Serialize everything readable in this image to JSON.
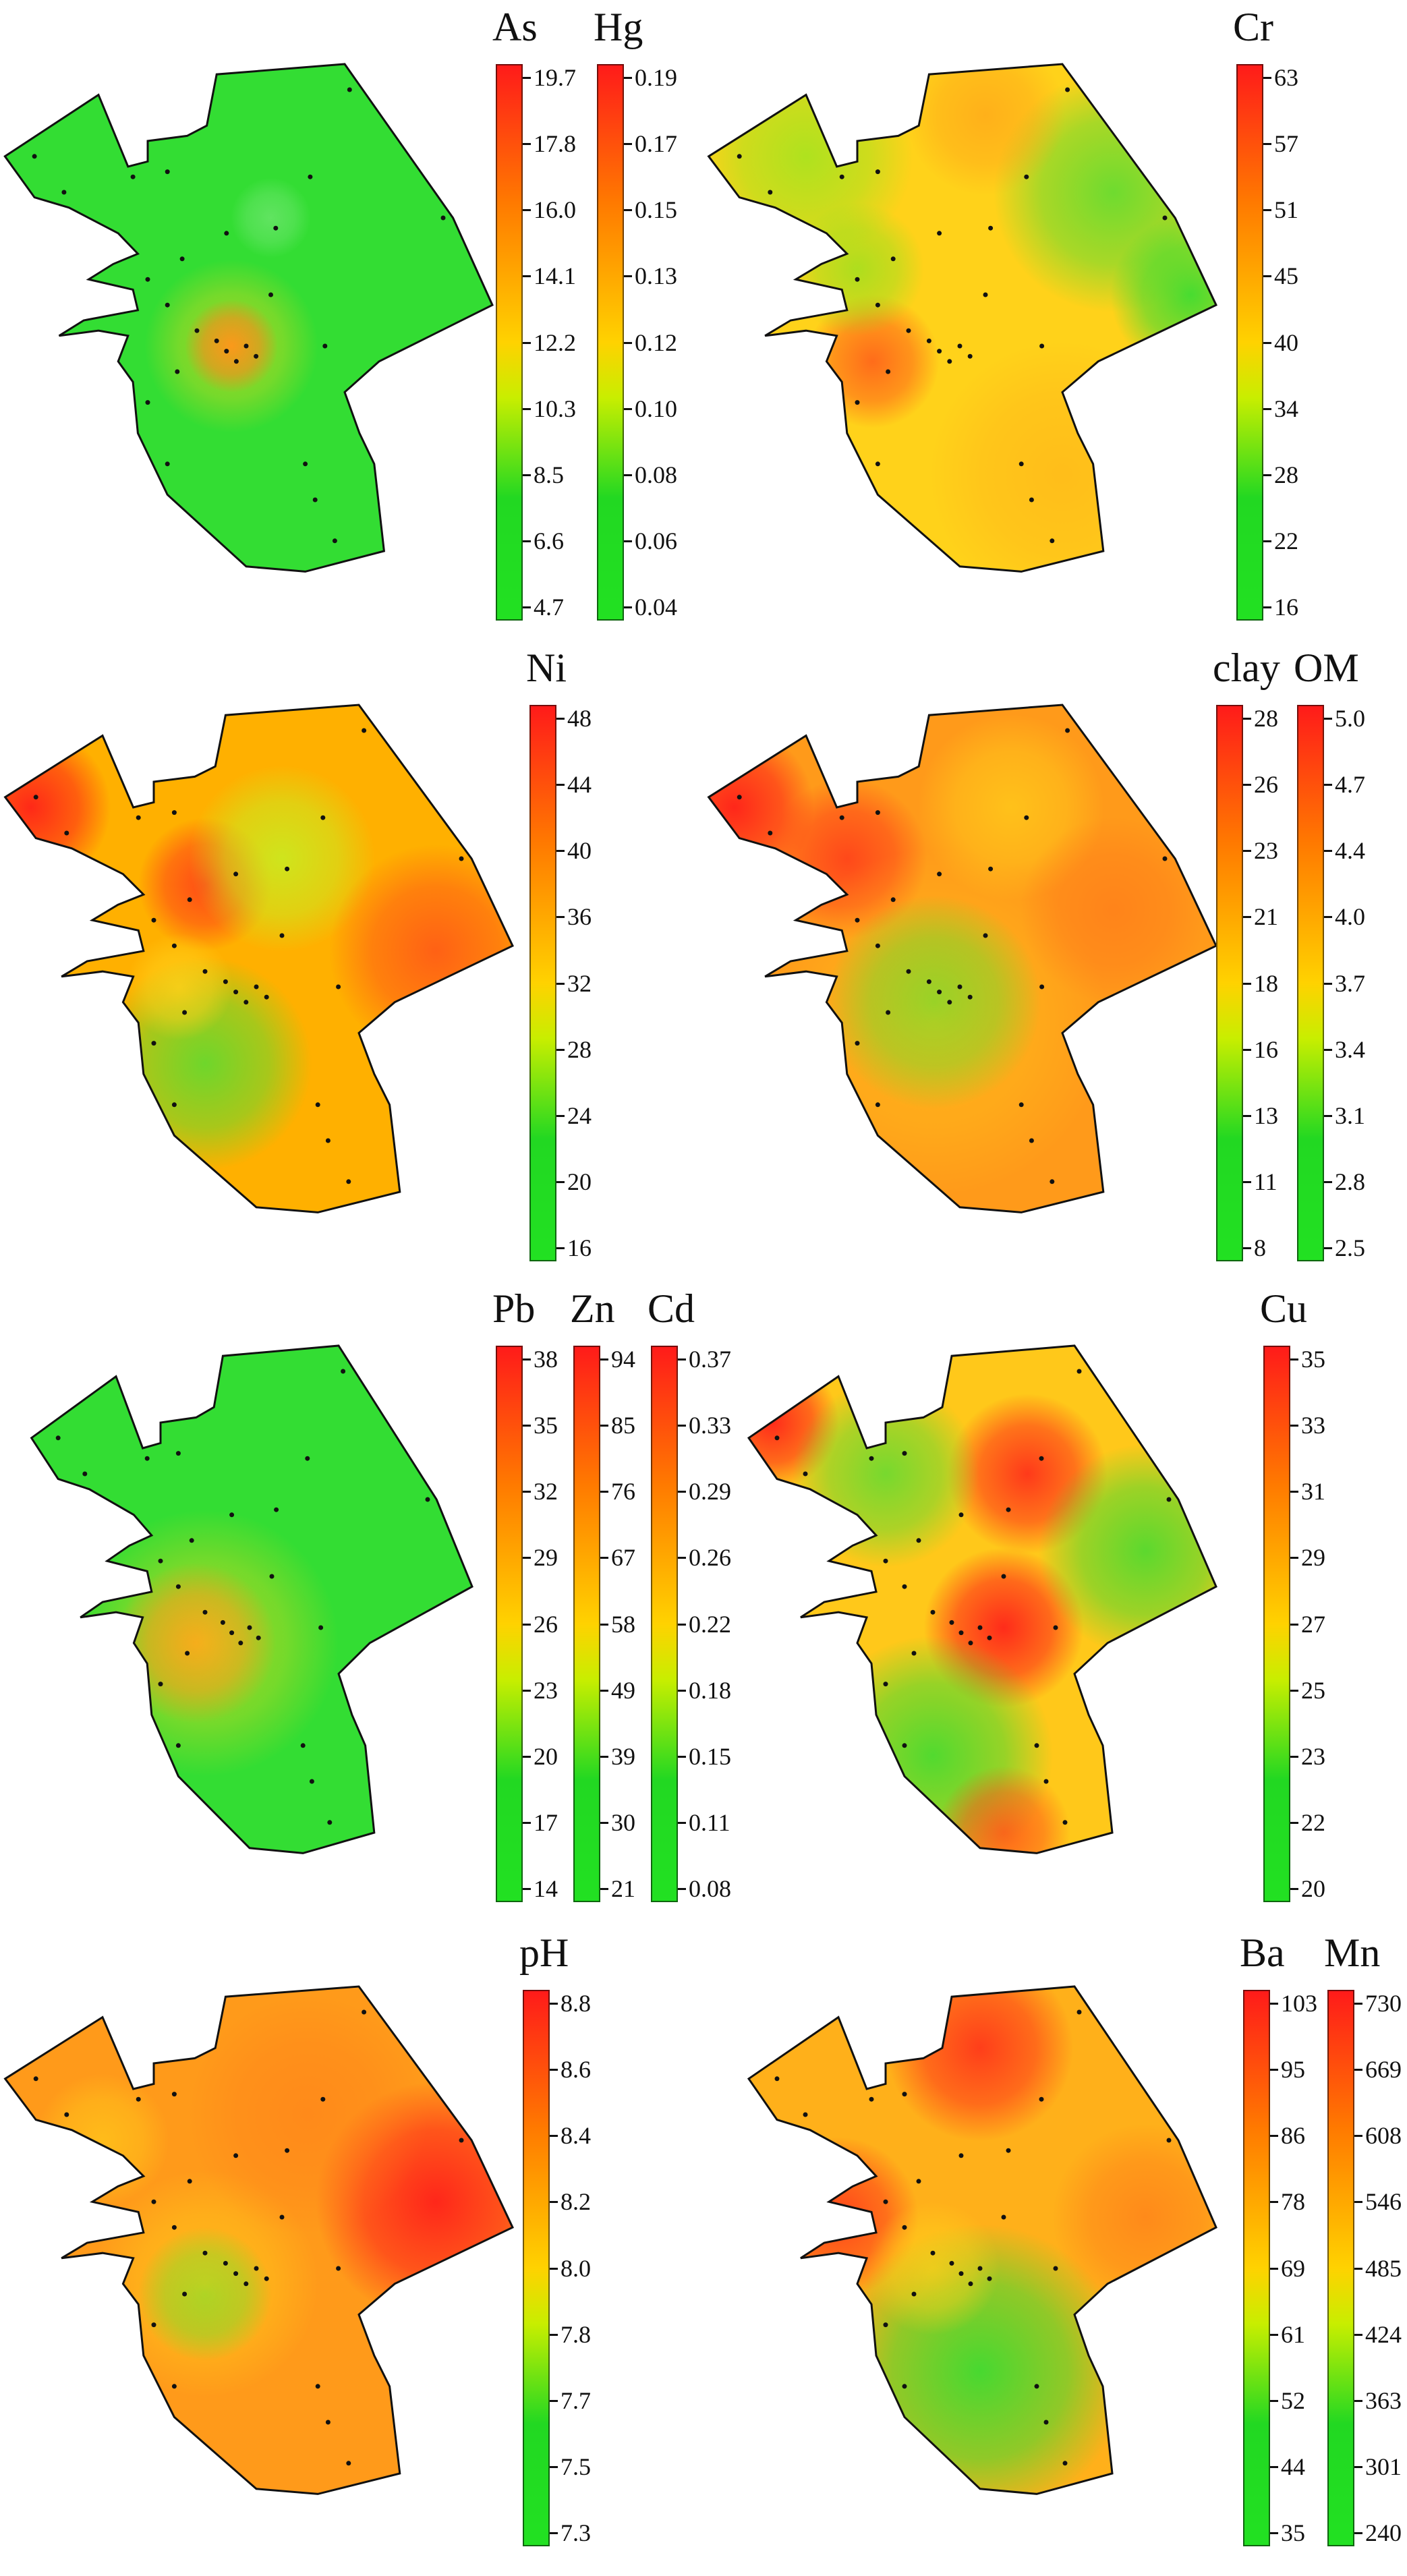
{
  "panels": [
    {
      "id": "p1",
      "theme": "low",
      "bars": [
        {
          "title": "As",
          "ticks": [
            "19.7",
            "17.8",
            "16.0",
            "14.1",
            "12.2",
            "10.3",
            "8.5",
            "6.6",
            "4.7"
          ]
        },
        {
          "title": "Hg",
          "ticks": [
            "0.19",
            "0.17",
            "0.15",
            "0.13",
            "0.12",
            "0.10",
            "0.08",
            "0.06",
            "0.04"
          ]
        }
      ]
    },
    {
      "id": "p2",
      "theme": "cr",
      "bars": [
        {
          "title": "Cr",
          "ticks": [
            "63",
            "57",
            "51",
            "45",
            "40",
            "34",
            "28",
            "22",
            "16"
          ]
        }
      ]
    },
    {
      "id": "p3",
      "theme": "ni",
      "bars": [
        {
          "title": "Ni",
          "ticks": [
            "48",
            "44",
            "40",
            "36",
            "32",
            "28",
            "24",
            "20",
            "16"
          ]
        }
      ]
    },
    {
      "id": "p4",
      "theme": "clay",
      "bars": [
        {
          "title": "clay",
          "ticks": [
            "28",
            "26",
            "23",
            "21",
            "18",
            "16",
            "13",
            "11",
            "8"
          ]
        },
        {
          "title": "OM",
          "ticks": [
            "5.0",
            "4.7",
            "4.4",
            "4.0",
            "3.7",
            "3.4",
            "3.1",
            "2.8",
            "2.5"
          ]
        }
      ]
    },
    {
      "id": "p5",
      "theme": "low2",
      "bars": [
        {
          "title": "Pb",
          "ticks": [
            "38",
            "35",
            "32",
            "29",
            "26",
            "23",
            "20",
            "17",
            "14"
          ]
        },
        {
          "title": "Zn",
          "ticks": [
            "94",
            "85",
            "76",
            "67",
            "58",
            "49",
            "39",
            "30",
            "21"
          ]
        },
        {
          "title": "Cd",
          "ticks": [
            "0.37",
            "0.33",
            "0.29",
            "0.26",
            "0.22",
            "0.18",
            "0.15",
            "0.11",
            "0.08"
          ]
        }
      ]
    },
    {
      "id": "p6",
      "theme": "cu",
      "bars": [
        {
          "title": "Cu",
          "ticks": [
            "35",
            "33",
            "31",
            "29",
            "27",
            "25",
            "23",
            "22",
            "20"
          ]
        }
      ]
    },
    {
      "id": "p7",
      "theme": "ph",
      "bars": [
        {
          "title": "pH",
          "ticks": [
            "8.8",
            "8.6",
            "8.4",
            "8.2",
            "8.0",
            "7.8",
            "7.7",
            "7.5",
            "7.3"
          ]
        }
      ]
    },
    {
      "id": "p8",
      "theme": "ba",
      "bars": [
        {
          "title": "Ba",
          "ticks": [
            "103",
            "95",
            "86",
            "78",
            "69",
            "61",
            "52",
            "44",
            "35"
          ]
        },
        {
          "title": "Mn",
          "ticks": [
            "730",
            "669",
            "608",
            "546",
            "485",
            "424",
            "363",
            "301",
            "240"
          ]
        }
      ]
    }
  ]
}
